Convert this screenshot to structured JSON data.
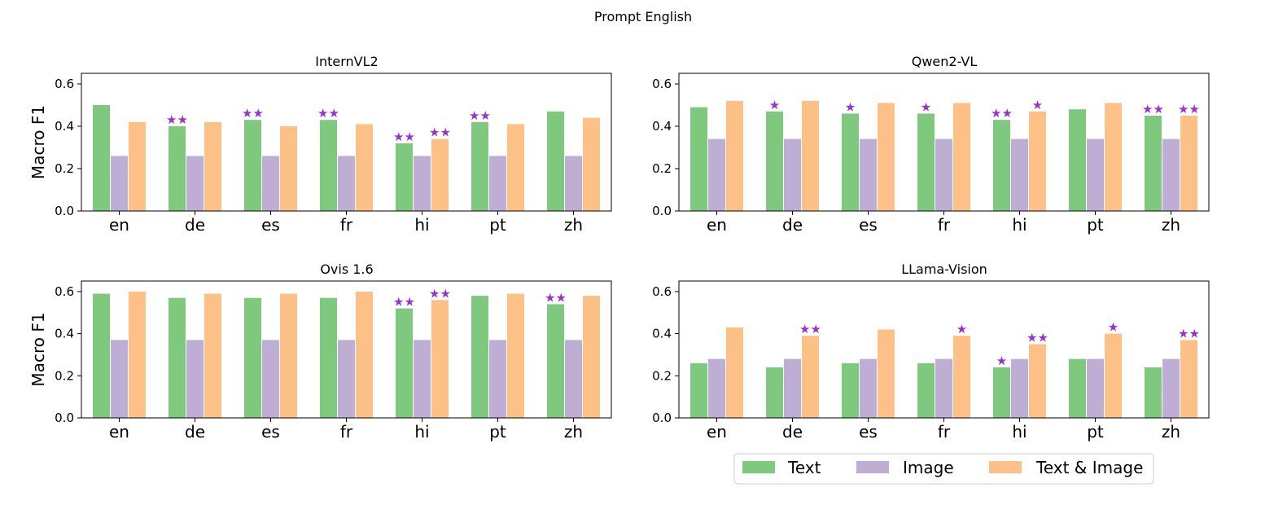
{
  "figure": {
    "suptitle": "Prompt English"
  },
  "legend": {
    "items": [
      {
        "label": "Text",
        "color": "#7fc97f"
      },
      {
        "label": "Image",
        "color": "#beaed4"
      },
      {
        "label": "Text & Image",
        "color": "#fdc086"
      }
    ],
    "placement": "bottom-center"
  },
  "chart_data": [
    {
      "type": "bar",
      "title": "InternVL2",
      "xlabel": "",
      "ylabel": "Macro F1",
      "ylim": [
        0,
        0.65
      ],
      "yticks": [
        "0.0",
        "0.2",
        "0.4",
        "0.6"
      ],
      "categories": [
        "en",
        "de",
        "es",
        "fr",
        "hi",
        "pt",
        "zh"
      ],
      "series": [
        {
          "name": "Text",
          "values": [
            0.5,
            0.4,
            0.43,
            0.43,
            0.32,
            0.42,
            0.47
          ],
          "stars": [
            "",
            "★★",
            "★★",
            "★★",
            "★★",
            "★★",
            ""
          ]
        },
        {
          "name": "Image",
          "values": [
            0.26,
            0.26,
            0.26,
            0.26,
            0.26,
            0.26,
            0.26
          ],
          "stars": [
            "",
            "",
            "",
            "",
            "",
            "",
            ""
          ]
        },
        {
          "name": "Text & Image",
          "values": [
            0.42,
            0.42,
            0.4,
            0.41,
            0.34,
            0.41,
            0.44
          ],
          "stars": [
            "",
            "",
            "",
            "",
            "★★",
            "",
            ""
          ]
        }
      ]
    },
    {
      "type": "bar",
      "title": "Qwen2-VL",
      "xlabel": "",
      "ylabel": "",
      "ylim": [
        0,
        0.65
      ],
      "yticks": [
        "0.0",
        "0.2",
        "0.4",
        "0.6"
      ],
      "categories": [
        "en",
        "de",
        "es",
        "fr",
        "hi",
        "pt",
        "zh"
      ],
      "series": [
        {
          "name": "Text",
          "values": [
            0.49,
            0.47,
            0.46,
            0.46,
            0.43,
            0.48,
            0.45
          ],
          "stars": [
            "",
            "★",
            "★",
            "★",
            "★★",
            "",
            "★★"
          ]
        },
        {
          "name": "Image",
          "values": [
            0.34,
            0.34,
            0.34,
            0.34,
            0.34,
            0.34,
            0.34
          ],
          "stars": [
            "",
            "",
            "",
            "",
            "",
            "",
            ""
          ]
        },
        {
          "name": "Text & Image",
          "values": [
            0.52,
            0.52,
            0.51,
            0.51,
            0.47,
            0.51,
            0.45
          ],
          "stars": [
            "",
            "",
            "",
            "",
            "★",
            "",
            "★★"
          ]
        }
      ]
    },
    {
      "type": "bar",
      "title": "Ovis 1.6",
      "xlabel": "",
      "ylabel": "Macro F1",
      "ylim": [
        0,
        0.65
      ],
      "yticks": [
        "0.0",
        "0.2",
        "0.4",
        "0.6"
      ],
      "categories": [
        "en",
        "de",
        "es",
        "fr",
        "hi",
        "pt",
        "zh"
      ],
      "series": [
        {
          "name": "Text",
          "values": [
            0.59,
            0.57,
            0.57,
            0.57,
            0.52,
            0.58,
            0.54
          ],
          "stars": [
            "",
            "",
            "",
            "",
            "★★",
            "",
            "★★"
          ]
        },
        {
          "name": "Image",
          "values": [
            0.37,
            0.37,
            0.37,
            0.37,
            0.37,
            0.37,
            0.37
          ],
          "stars": [
            "",
            "",
            "",
            "",
            "",
            "",
            ""
          ]
        },
        {
          "name": "Text & Image",
          "values": [
            0.6,
            0.59,
            0.59,
            0.6,
            0.56,
            0.59,
            0.58
          ],
          "stars": [
            "",
            "",
            "",
            "",
            "★★",
            "",
            ""
          ]
        }
      ]
    },
    {
      "type": "bar",
      "title": "LLama-Vision",
      "xlabel": "",
      "ylabel": "",
      "ylim": [
        0,
        0.65
      ],
      "yticks": [
        "0.0",
        "0.2",
        "0.4",
        "0.6"
      ],
      "categories": [
        "en",
        "de",
        "es",
        "fr",
        "hi",
        "pt",
        "zh"
      ],
      "series": [
        {
          "name": "Text",
          "values": [
            0.26,
            0.24,
            0.26,
            0.26,
            0.24,
            0.28,
            0.24
          ],
          "stars": [
            "",
            "",
            "",
            "",
            "★",
            "",
            ""
          ]
        },
        {
          "name": "Image",
          "values": [
            0.28,
            0.28,
            0.28,
            0.28,
            0.28,
            0.28,
            0.28
          ],
          "stars": [
            "",
            "",
            "",
            "",
            "",
            "",
            ""
          ]
        },
        {
          "name": "Text & Image",
          "values": [
            0.43,
            0.39,
            0.42,
            0.39,
            0.35,
            0.4,
            0.37
          ],
          "stars": [
            "",
            "★★",
            "",
            "★",
            "★★",
            "★",
            "★★"
          ]
        }
      ]
    }
  ]
}
